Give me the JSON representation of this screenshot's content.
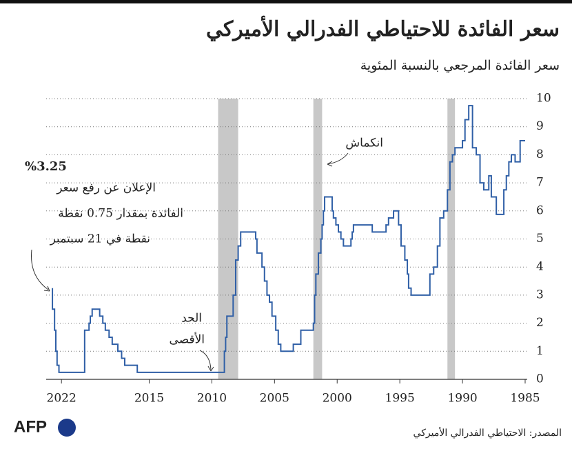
{
  "chart_data": {
    "type": "line",
    "title": "سعر الفائدة للاحتياطي الفدرالي الأميركي",
    "subtitle": "سعر الفائدة المرجعي بالنسبة المئوية",
    "source": "المصدر: الاحتياطي الفدرالي الأميركي",
    "logo": "AFP",
    "step": true,
    "x_reversed": true,
    "grid": true,
    "xlim": [
      1985,
      2023
    ],
    "ylim": [
      0,
      10
    ],
    "xticks": [
      1985,
      1990,
      1995,
      2000,
      2005,
      2010,
      2015,
      2022
    ],
    "yticks": [
      0,
      1,
      2,
      3,
      4,
      5,
      6,
      7,
      8,
      9,
      10
    ],
    "shaded": {
      "color": "#c8c8c8",
      "ranges": [
        [
          1990.6,
          1991.2
        ],
        [
          2001.2,
          2001.9
        ],
        [
          2007.9,
          2009.5
        ]
      ]
    },
    "annotations": {
      "recession": "انكماش",
      "max_line1": "الحد",
      "max_line2": "الأقصى",
      "rate": "%3.25",
      "note_line1": "الإعلان عن رفع سعر",
      "note_line2": "الفائدة بمقدار 0.75 نقطة",
      "note_line3": "نقطة في 21 سبتمبر"
    },
    "series": [
      {
        "name": "سعر الفائدة",
        "color": "#2f5fa6",
        "x": [
          1985.0,
          1985.4,
          1985.8,
          1986.1,
          1986.3,
          1986.5,
          1986.7,
          1987.3,
          1987.7,
          1987.9,
          1988.3,
          1988.6,
          1988.9,
          1989.2,
          1989.5,
          1989.8,
          1990.0,
          1990.6,
          1990.8,
          1991.0,
          1991.2,
          1991.5,
          1991.8,
          1992.0,
          1992.3,
          1992.6,
          1994.1,
          1994.3,
          1994.4,
          1994.6,
          1994.9,
          1995.1,
          1995.5,
          1995.9,
          1996.1,
          1997.2,
          1998.7,
          1998.8,
          1998.9,
          1999.5,
          1999.7,
          1999.9,
          2000.1,
          2000.3,
          2000.4,
          2001.0,
          2001.1,
          2001.2,
          2001.3,
          2001.5,
          2001.7,
          2001.8,
          2001.9,
          2002.9,
          2003.5,
          2004.5,
          2004.7,
          2004.9,
          2005.2,
          2005.4,
          2005.6,
          2005.8,
          2006.0,
          2006.4,
          2006.5,
          2007.7,
          2007.9,
          2008.1,
          2008.3,
          2008.8,
          2008.9,
          2009.0,
          2015.95,
          2016.95,
          2017.2,
          2017.5,
          2017.95,
          2018.2,
          2018.5,
          2018.7,
          2018.95,
          2019.55,
          2019.7,
          2019.8,
          2020.15,
          2022.2,
          2022.35,
          2022.45,
          2022.55,
          2022.72
        ],
        "values": [
          8.5,
          7.75,
          8.0,
          7.75,
          7.25,
          6.75,
          5.875,
          6.5,
          7.25,
          6.75,
          7.0,
          8.0,
          8.25,
          9.75,
          9.25,
          8.5,
          8.25,
          8.0,
          7.75,
          6.75,
          6.0,
          5.75,
          4.75,
          4.0,
          3.75,
          3.0,
          3.25,
          3.75,
          4.25,
          4.75,
          5.5,
          6.0,
          5.75,
          5.5,
          5.25,
          5.5,
          5.25,
          5.0,
          4.75,
          5.0,
          5.25,
          5.5,
          5.75,
          6.0,
          6.5,
          6.0,
          5.5,
          5.0,
          4.5,
          3.75,
          3.0,
          2.0,
          1.75,
          1.25,
          1.0,
          1.25,
          1.75,
          2.25,
          2.75,
          3.0,
          3.5,
          4.0,
          4.5,
          5.0,
          5.25,
          4.75,
          4.25,
          3.0,
          2.25,
          1.5,
          1.0,
          0.25,
          0.5,
          0.75,
          1.0,
          1.25,
          1.5,
          1.75,
          2.0,
          2.25,
          2.5,
          2.25,
          2.0,
          1.75,
          0.25,
          0.5,
          1.0,
          1.75,
          2.5,
          3.25
        ]
      }
    ]
  }
}
